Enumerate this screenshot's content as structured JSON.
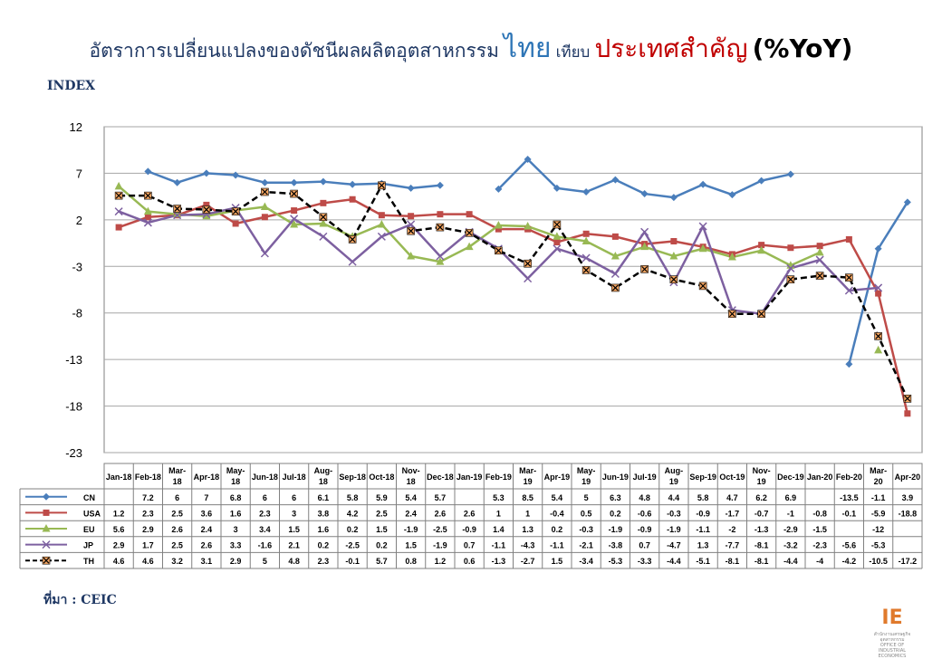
{
  "title": {
    "part1": "อัตราการเปลี่ยนแปลงของดัชนีผลผลิตอุตสาหกรรม",
    "part2": "ไทย",
    "part3": "เทียบ",
    "part4": "ประเทศสำคัญ",
    "part5": "(%YoY)"
  },
  "source": "ที่มา : CEIC",
  "logo": {
    "mark": "IE",
    "sub1": "สำนักงานเศรษฐกิจอุตสาหกรรม",
    "sub2": "OFFICE OF INDUSTRIAL ECONOMICS"
  },
  "chart_data": {
    "type": "line",
    "ylabel": "INDEX",
    "ylim": [
      -23,
      12
    ],
    "yticks": [
      12,
      7,
      2,
      -3,
      -8,
      -13,
      -18,
      -23
    ],
    "grid": true,
    "categories": [
      "Jan-18",
      "Feb-18",
      "Mar-18",
      "Apr-18",
      "May-18",
      "Jun-18",
      "Jul-18",
      "Aug-18",
      "Sep-18",
      "Oct-18",
      "Nov-18",
      "Dec-18",
      "Jan-19",
      "Feb-19",
      "Mar-19",
      "Apr-19",
      "May-19",
      "Jun-19",
      "Jul-19",
      "Aug-19",
      "Sep-19",
      "Oct-19",
      "Nov-19",
      "Dec-19",
      "Jan-20",
      "Feb-20",
      "Mar-20",
      "Apr-20"
    ],
    "series": [
      {
        "name": "CN",
        "color": "#4a7ebb",
        "marker": "diamond",
        "dash": false,
        "values": [
          null,
          7.2,
          6,
          7,
          6.8,
          6,
          6,
          6.1,
          5.8,
          5.9,
          5.4,
          5.7,
          null,
          5.3,
          8.5,
          5.4,
          5,
          6.3,
          4.8,
          4.4,
          5.8,
          4.7,
          6.2,
          6.9,
          null,
          -13.5,
          -1.1,
          3.9
        ]
      },
      {
        "name": "USA",
        "color": "#be4b48",
        "marker": "square",
        "dash": false,
        "values": [
          1.2,
          2.3,
          2.5,
          3.6,
          1.6,
          2.3,
          3.0,
          3.8,
          4.2,
          2.5,
          2.4,
          2.6,
          2.6,
          1.0,
          1.0,
          -0.4,
          0.5,
          0.2,
          -0.6,
          -0.3,
          -0.9,
          -1.7,
          -0.7,
          -1.0,
          -0.8,
          -0.1,
          -5.9,
          -18.8
        ]
      },
      {
        "name": "EU",
        "color": "#98b954",
        "marker": "triangle",
        "dash": false,
        "values": [
          5.6,
          2.9,
          2.6,
          2.4,
          3.0,
          3.4,
          1.5,
          1.6,
          0.2,
          1.5,
          -1.9,
          -2.5,
          -0.9,
          1.4,
          1.3,
          0.2,
          -0.3,
          -1.9,
          -0.9,
          -1.9,
          -1.1,
          -2.0,
          -1.3,
          -2.9,
          -1.5,
          null,
          -12.0,
          null
        ]
      },
      {
        "name": "JP",
        "color": "#7d60a0",
        "marker": "x",
        "dash": false,
        "values": [
          2.9,
          1.7,
          2.5,
          2.6,
          3.3,
          -1.6,
          2.1,
          0.2,
          -2.5,
          0.2,
          1.5,
          -1.9,
          0.7,
          -1.1,
          -4.3,
          -1.1,
          -2.1,
          -3.8,
          0.7,
          -4.7,
          1.3,
          -7.7,
          -8.1,
          -3.2,
          -2.3,
          -5.6,
          -5.3,
          null
        ]
      },
      {
        "name": "TH",
        "color": "#000000",
        "marker": "star",
        "dash": true,
        "values": [
          4.6,
          4.6,
          3.2,
          3.1,
          2.9,
          5,
          4.8,
          2.3,
          -0.1,
          5.7,
          0.8,
          1.2,
          0.6,
          -1.3,
          -2.7,
          1.5,
          -3.4,
          -5.3,
          -3.3,
          -4.4,
          -5.1,
          -8.1,
          -8.1,
          -4.4,
          -4,
          -4.2,
          -10.5,
          -17.2
        ]
      }
    ]
  }
}
